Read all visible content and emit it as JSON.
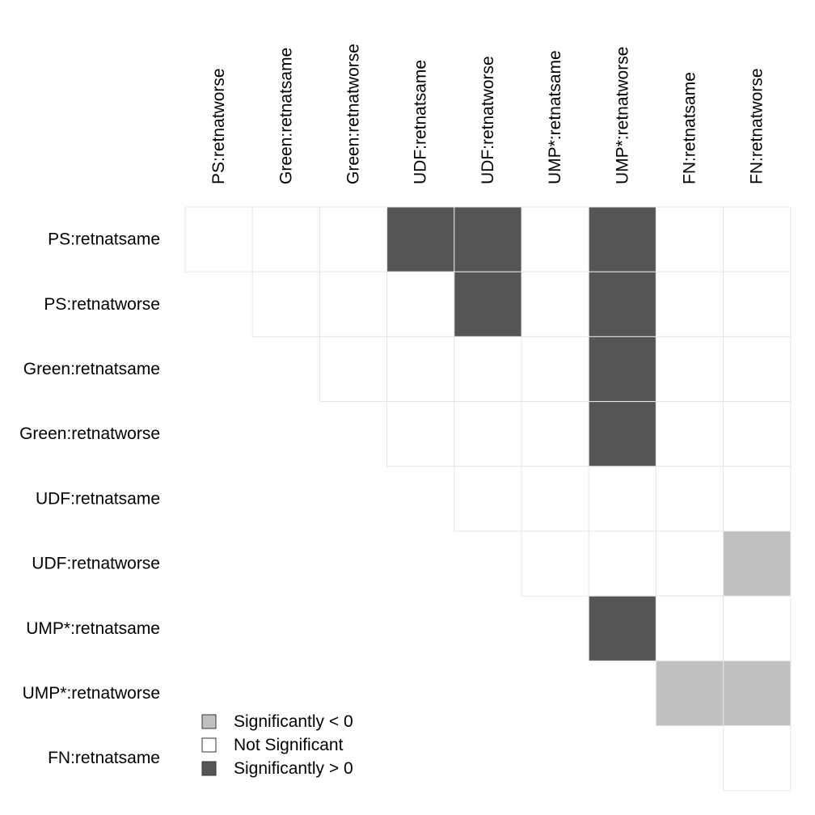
{
  "chart_data": {
    "type": "heatmap",
    "rows": [
      "PS:retnatsame",
      "PS:retnatworse",
      "Green:retnatsame",
      "Green:retnatworse",
      "UDF:retnatsame",
      "UDF:retnatworse",
      "UMP*:retnatsame",
      "UMP*:retnatworse",
      "FN:retnatsame"
    ],
    "columns": [
      "PS:retnatworse",
      "Green:retnatsame",
      "Green:retnatworse",
      "UDF:retnatsame",
      "UDF:retnatworse",
      "UMP*:retnatsame",
      "UMP*:retnatworse",
      "FN:retnatsame",
      "FN:retnatworse"
    ],
    "matrix": [
      [
        0,
        0,
        0,
        1,
        1,
        0,
        1,
        0,
        0
      ],
      [
        null,
        0,
        0,
        0,
        1,
        0,
        1,
        0,
        0
      ],
      [
        null,
        null,
        0,
        0,
        0,
        0,
        1,
        0,
        0
      ],
      [
        null,
        null,
        null,
        0,
        0,
        0,
        1,
        0,
        0
      ],
      [
        null,
        null,
        null,
        null,
        0,
        0,
        0,
        0,
        0
      ],
      [
        null,
        null,
        null,
        null,
        null,
        0,
        0,
        0,
        -1
      ],
      [
        null,
        null,
        null,
        null,
        null,
        null,
        1,
        0,
        0
      ],
      [
        null,
        null,
        null,
        null,
        null,
        null,
        null,
        -1,
        -1
      ],
      [
        null,
        null,
        null,
        null,
        null,
        null,
        null,
        null,
        0
      ]
    ],
    "legend": {
      "placement": "bottom-left",
      "entries": [
        {
          "value": -1,
          "label": "Significantly < 0",
          "color": "#c0c0c0"
        },
        {
          "value": 0,
          "label": "Not Significant",
          "color": "#ffffff"
        },
        {
          "value": 1,
          "label": "Significantly > 0",
          "color": "#555555"
        }
      ]
    },
    "colors": {
      "cell_border": "#e6e6e6",
      "legend_border": "#333333"
    }
  }
}
